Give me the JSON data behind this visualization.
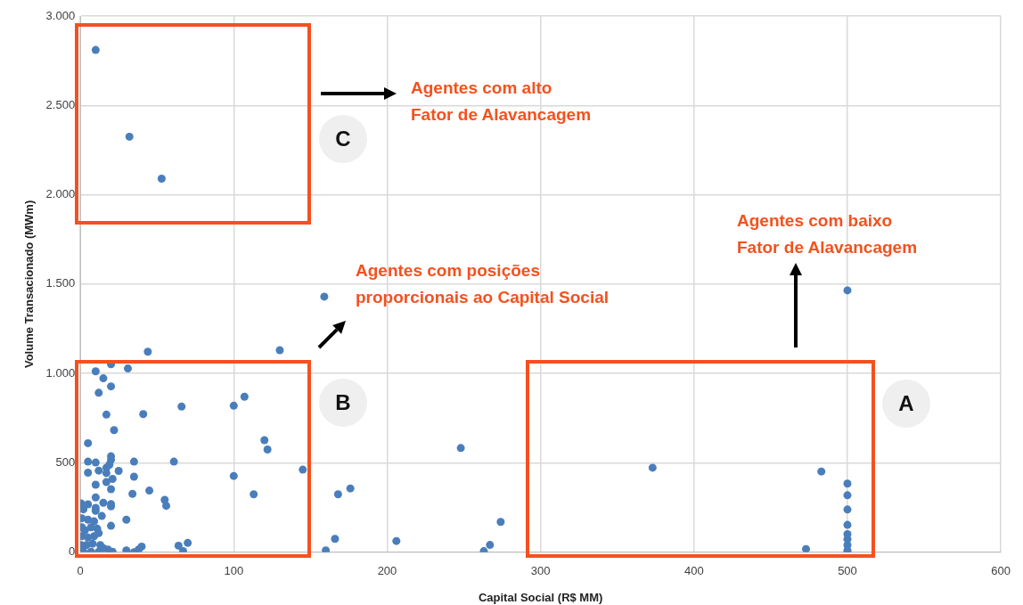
{
  "chart_data": {
    "type": "scatter",
    "xlabel": "Capital Social (R$ MM)",
    "ylabel": "Volume Transacionado (MWm)",
    "xlim": [
      0,
      600
    ],
    "xticks": [
      0,
      100,
      200,
      300,
      400,
      500,
      600
    ],
    "ylim": [
      0,
      3000
    ],
    "yticks": [
      0,
      {
        "value": 500,
        "label": "500"
      },
      {
        "value": 1000,
        "label": "1.000"
      },
      {
        "value": 1500,
        "label": "1.500"
      },
      {
        "value": 2000,
        "label": "2.000"
      },
      {
        "value": 2500,
        "label": "2.500"
      },
      {
        "value": 3000,
        "label": "3.000"
      }
    ],
    "grid": true,
    "marker": "circle",
    "series": [
      {
        "color": "#4a7ebb",
        "x": [
          10,
          32,
          53,
          159,
          130,
          500,
          107,
          100,
          120,
          122,
          145,
          100,
          113,
          168,
          176,
          248,
          166,
          160,
          206,
          274,
          267,
          263,
          373,
          483,
          473,
          500,
          500,
          500,
          500,
          500,
          500,
          500,
          500,
          500,
          44,
          20,
          10,
          31,
          15,
          20,
          12,
          17,
          41,
          66,
          22,
          5,
          20,
          20,
          5,
          10,
          19,
          17,
          35,
          61,
          5,
          12,
          25,
          17,
          35,
          21,
          17,
          10,
          20,
          34,
          45,
          10,
          55,
          56,
          0.5,
          5,
          15,
          20,
          20,
          10,
          10,
          2,
          14,
          1,
          30,
          5,
          20,
          1,
          3,
          7,
          9,
          11,
          1,
          5,
          9,
          12,
          0.5,
          4,
          8,
          13,
          15,
          18,
          21,
          2,
          7,
          12,
          30,
          35,
          38,
          40,
          64,
          70,
          67
        ],
        "values": [
          2810,
          2325,
          2090,
          1430,
          1130,
          1465,
          870,
          820,
          627,
          575,
          462,
          427,
          324,
          324,
          357,
          583,
          75,
          10,
          63,
          170,
          41,
          6,
          473,
          452,
          18,
          384,
          319,
          239,
          153,
          101,
          73,
          40,
          10,
          0,
          1122,
          1052,
          1012,
          1028,
          973,
          928,
          892,
          770,
          773,
          815,
          683,
          610,
          537,
          517,
          507,
          502,
          490,
          473,
          507,
          507,
          445,
          457,
          455,
          443,
          423,
          410,
          393,
          378,
          353,
          327,
          345,
          307,
          293,
          260,
          273,
          268,
          277,
          270,
          257,
          248,
          232,
          240,
          203,
          190,
          182,
          182,
          148,
          140,
          123,
          140,
          173,
          132,
          90,
          82,
          90,
          107,
          40,
          40,
          48,
          40,
          23,
          15,
          3,
          3,
          3,
          3,
          10,
          0,
          15,
          32,
          37,
          52,
          7
        ]
      }
    ],
    "annotations": [
      "Agentes com alto\nFator de Alavancagem",
      "Agentes com posições\nproporcionais ao Capital Social",
      "Agentes com baixo\nFator de Alavancagem",
      "C",
      "B",
      "A"
    ]
  }
}
